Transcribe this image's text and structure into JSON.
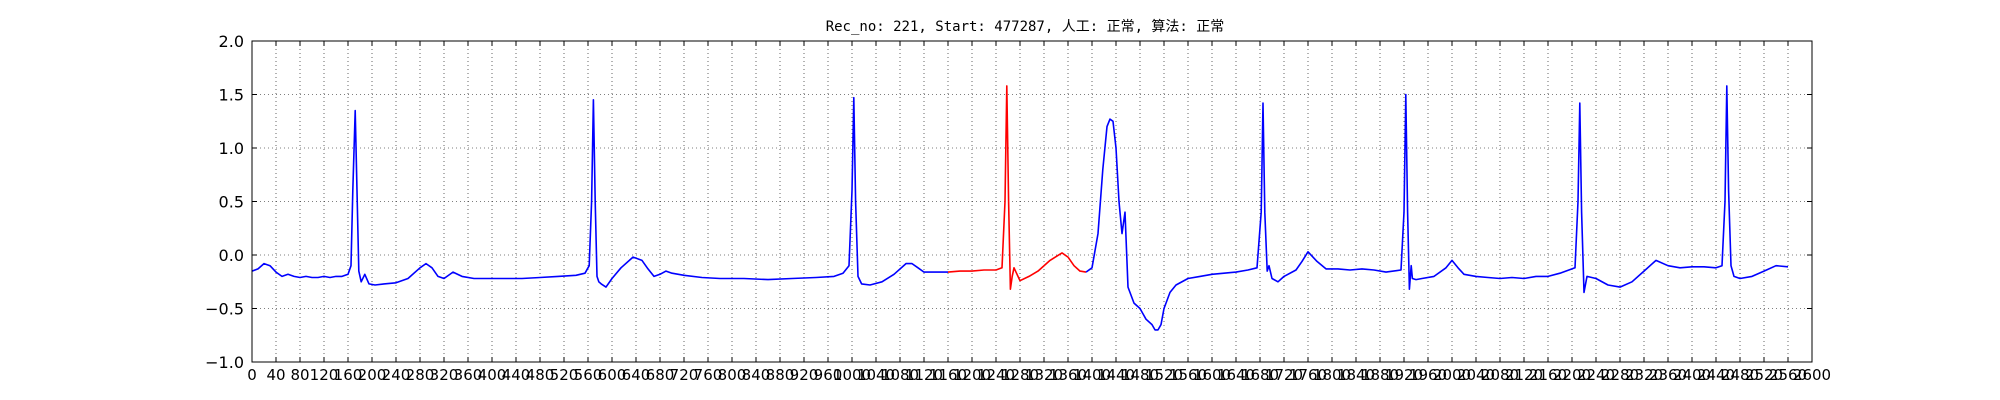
{
  "chart_data": {
    "type": "line",
    "title": "Rec_no: 221, Start: 477287, 人工: 正常, 算法: 正常",
    "xlabel": "",
    "ylabel": "",
    "xlim": [
      0,
      2600
    ],
    "ylim": [
      -1.0,
      2.0
    ],
    "yticks": [
      -1.0,
      -0.5,
      0.0,
      0.5,
      1.0,
      1.5,
      2.0
    ],
    "ytick_labels": [
      "−1.0",
      "−0.5",
      "0.0",
      "0.5",
      "1.0",
      "1.5",
      "2.0"
    ],
    "xticks": [
      0,
      40,
      80,
      120,
      160,
      200,
      240,
      280,
      320,
      360,
      400,
      440,
      480,
      520,
      560,
      600,
      640,
      680,
      720,
      760,
      800,
      840,
      880,
      920,
      960,
      1000,
      1040,
      1080,
      1120,
      1160,
      1200,
      1240,
      1280,
      1320,
      1360,
      1400,
      1440,
      1480,
      1520,
      1560,
      1600,
      1640,
      1680,
      1720,
      1760,
      1800,
      1840,
      1880,
      1920,
      1960,
      2000,
      2040,
      2080,
      2120,
      2160,
      2200,
      2240,
      2280,
      2320,
      2360,
      2400,
      2440,
      2480,
      2520,
      2560,
      2600
    ],
    "grid": true,
    "colors": {
      "series": "#0000ff",
      "highlight": "#ff0000",
      "grid": "#000000",
      "axes": "#000000"
    },
    "series": [
      {
        "segment": "before-highlight",
        "color": "#0000ff",
        "x": [
          0,
          10,
          20,
          30,
          40,
          50,
          60,
          70,
          80,
          90,
          100,
          110,
          120,
          130,
          140,
          150,
          160,
          165,
          168,
          172,
          175,
          178,
          182,
          188,
          195,
          205,
          220,
          240,
          260,
          280,
          290,
          300,
          310,
          320,
          335,
          350,
          370,
          390,
          420,
          450,
          480,
          510,
          540,
          555,
          562,
          566,
          569,
          572,
          575,
          578,
          582,
          590,
          600,
          615,
          635,
          650,
          660,
          670,
          680,
          690,
          700,
          720,
          750,
          780,
          820,
          860,
          900,
          940,
          970,
          985,
          995,
          1000,
          1003,
          1006,
          1010,
          1016,
          1030,
          1050,
          1070,
          1090,
          1100,
          1110,
          1120,
          1140,
          1160
        ],
        "y": [
          -0.15,
          -0.13,
          -0.08,
          -0.1,
          -0.16,
          -0.2,
          -0.18,
          -0.2,
          -0.21,
          -0.2,
          -0.21,
          -0.21,
          -0.2,
          -0.21,
          -0.2,
          -0.2,
          -0.18,
          -0.1,
          0.6,
          1.35,
          0.6,
          -0.15,
          -0.25,
          -0.18,
          -0.27,
          -0.28,
          -0.27,
          -0.26,
          -0.22,
          -0.12,
          -0.08,
          -0.12,
          -0.2,
          -0.22,
          -0.16,
          -0.2,
          -0.22,
          -0.22,
          -0.22,
          -0.22,
          -0.21,
          -0.2,
          -0.19,
          -0.17,
          -0.1,
          0.5,
          1.45,
          0.5,
          -0.2,
          -0.25,
          -0.27,
          -0.3,
          -0.22,
          -0.12,
          -0.02,
          -0.05,
          -0.13,
          -0.2,
          -0.18,
          -0.15,
          -0.17,
          -0.19,
          -0.21,
          -0.22,
          -0.22,
          -0.23,
          -0.22,
          -0.21,
          -0.2,
          -0.17,
          -0.1,
          0.6,
          1.47,
          0.5,
          -0.2,
          -0.27,
          -0.28,
          -0.25,
          -0.18,
          -0.08,
          -0.08,
          -0.12,
          -0.16,
          -0.16,
          -0.16
        ]
      },
      {
        "segment": "highlight",
        "color": "#ff0000",
        "x": [
          1160,
          1180,
          1200,
          1220,
          1240,
          1250,
          1255,
          1258,
          1261,
          1264,
          1267,
          1270,
          1280,
          1295,
          1310,
          1330,
          1350,
          1360,
          1370,
          1380,
          1390
        ],
        "y": [
          -0.16,
          -0.15,
          -0.15,
          -0.14,
          -0.14,
          -0.12,
          0.5,
          1.58,
          0.5,
          -0.32,
          -0.2,
          -0.12,
          -0.24,
          -0.2,
          -0.15,
          -0.05,
          0.02,
          -0.02,
          -0.1,
          -0.15,
          -0.16
        ]
      },
      {
        "segment": "after-highlight",
        "color": "#0000ff",
        "x": [
          1390,
          1400,
          1410,
          1418,
          1425,
          1430,
          1435,
          1440,
          1445,
          1450,
          1455,
          1460,
          1470,
          1480,
          1490,
          1500,
          1505,
          1510,
          1515,
          1520,
          1530,
          1540,
          1560,
          1580,
          1600,
          1620,
          1640,
          1660,
          1675,
          1682,
          1685,
          1688,
          1692,
          1695,
          1700,
          1710,
          1720,
          1740,
          1750,
          1760,
          1775,
          1790,
          1810,
          1830,
          1850,
          1870,
          1890,
          1915,
          1920,
          1923,
          1926,
          1929,
          1932,
          1934,
          1940,
          1950,
          1970,
          1990,
          2000,
          2010,
          2020,
          2040,
          2060,
          2080,
          2100,
          2120,
          2140,
          2160,
          2180,
          2205,
          2210,
          2213,
          2216,
          2220,
          2225,
          2240,
          2260,
          2280,
          2300,
          2320,
          2340,
          2360,
          2380,
          2400,
          2420,
          2440,
          2450,
          2455,
          2458,
          2461,
          2465,
          2470,
          2480,
          2500,
          2520,
          2540,
          2560
        ],
        "y": [
          -0.16,
          -0.12,
          0.2,
          0.8,
          1.2,
          1.27,
          1.25,
          1.0,
          0.5,
          0.2,
          0.4,
          -0.3,
          -0.45,
          -0.5,
          -0.6,
          -0.65,
          -0.7,
          -0.7,
          -0.65,
          -0.5,
          -0.35,
          -0.28,
          -0.22,
          -0.2,
          -0.18,
          -0.17,
          -0.16,
          -0.14,
          -0.12,
          0.4,
          1.42,
          0.4,
          -0.15,
          -0.1,
          -0.22,
          -0.25,
          -0.2,
          -0.14,
          -0.06,
          0.03,
          -0.06,
          -0.13,
          -0.13,
          -0.14,
          -0.13,
          -0.14,
          -0.16,
          -0.14,
          0.4,
          1.5,
          0.4,
          -0.32,
          -0.1,
          -0.22,
          -0.23,
          -0.22,
          -0.2,
          -0.12,
          -0.05,
          -0.12,
          -0.18,
          -0.2,
          -0.21,
          -0.22,
          -0.21,
          -0.22,
          -0.2,
          -0.2,
          -0.17,
          -0.12,
          0.5,
          1.42,
          0.4,
          -0.35,
          -0.2,
          -0.22,
          -0.28,
          -0.3,
          -0.25,
          -0.15,
          -0.05,
          -0.1,
          -0.12,
          -0.11,
          -0.11,
          -0.12,
          -0.1,
          0.5,
          1.58,
          0.6,
          -0.1,
          -0.2,
          -0.22,
          -0.2,
          -0.15,
          -0.1,
          -0.11
        ]
      }
    ]
  }
}
